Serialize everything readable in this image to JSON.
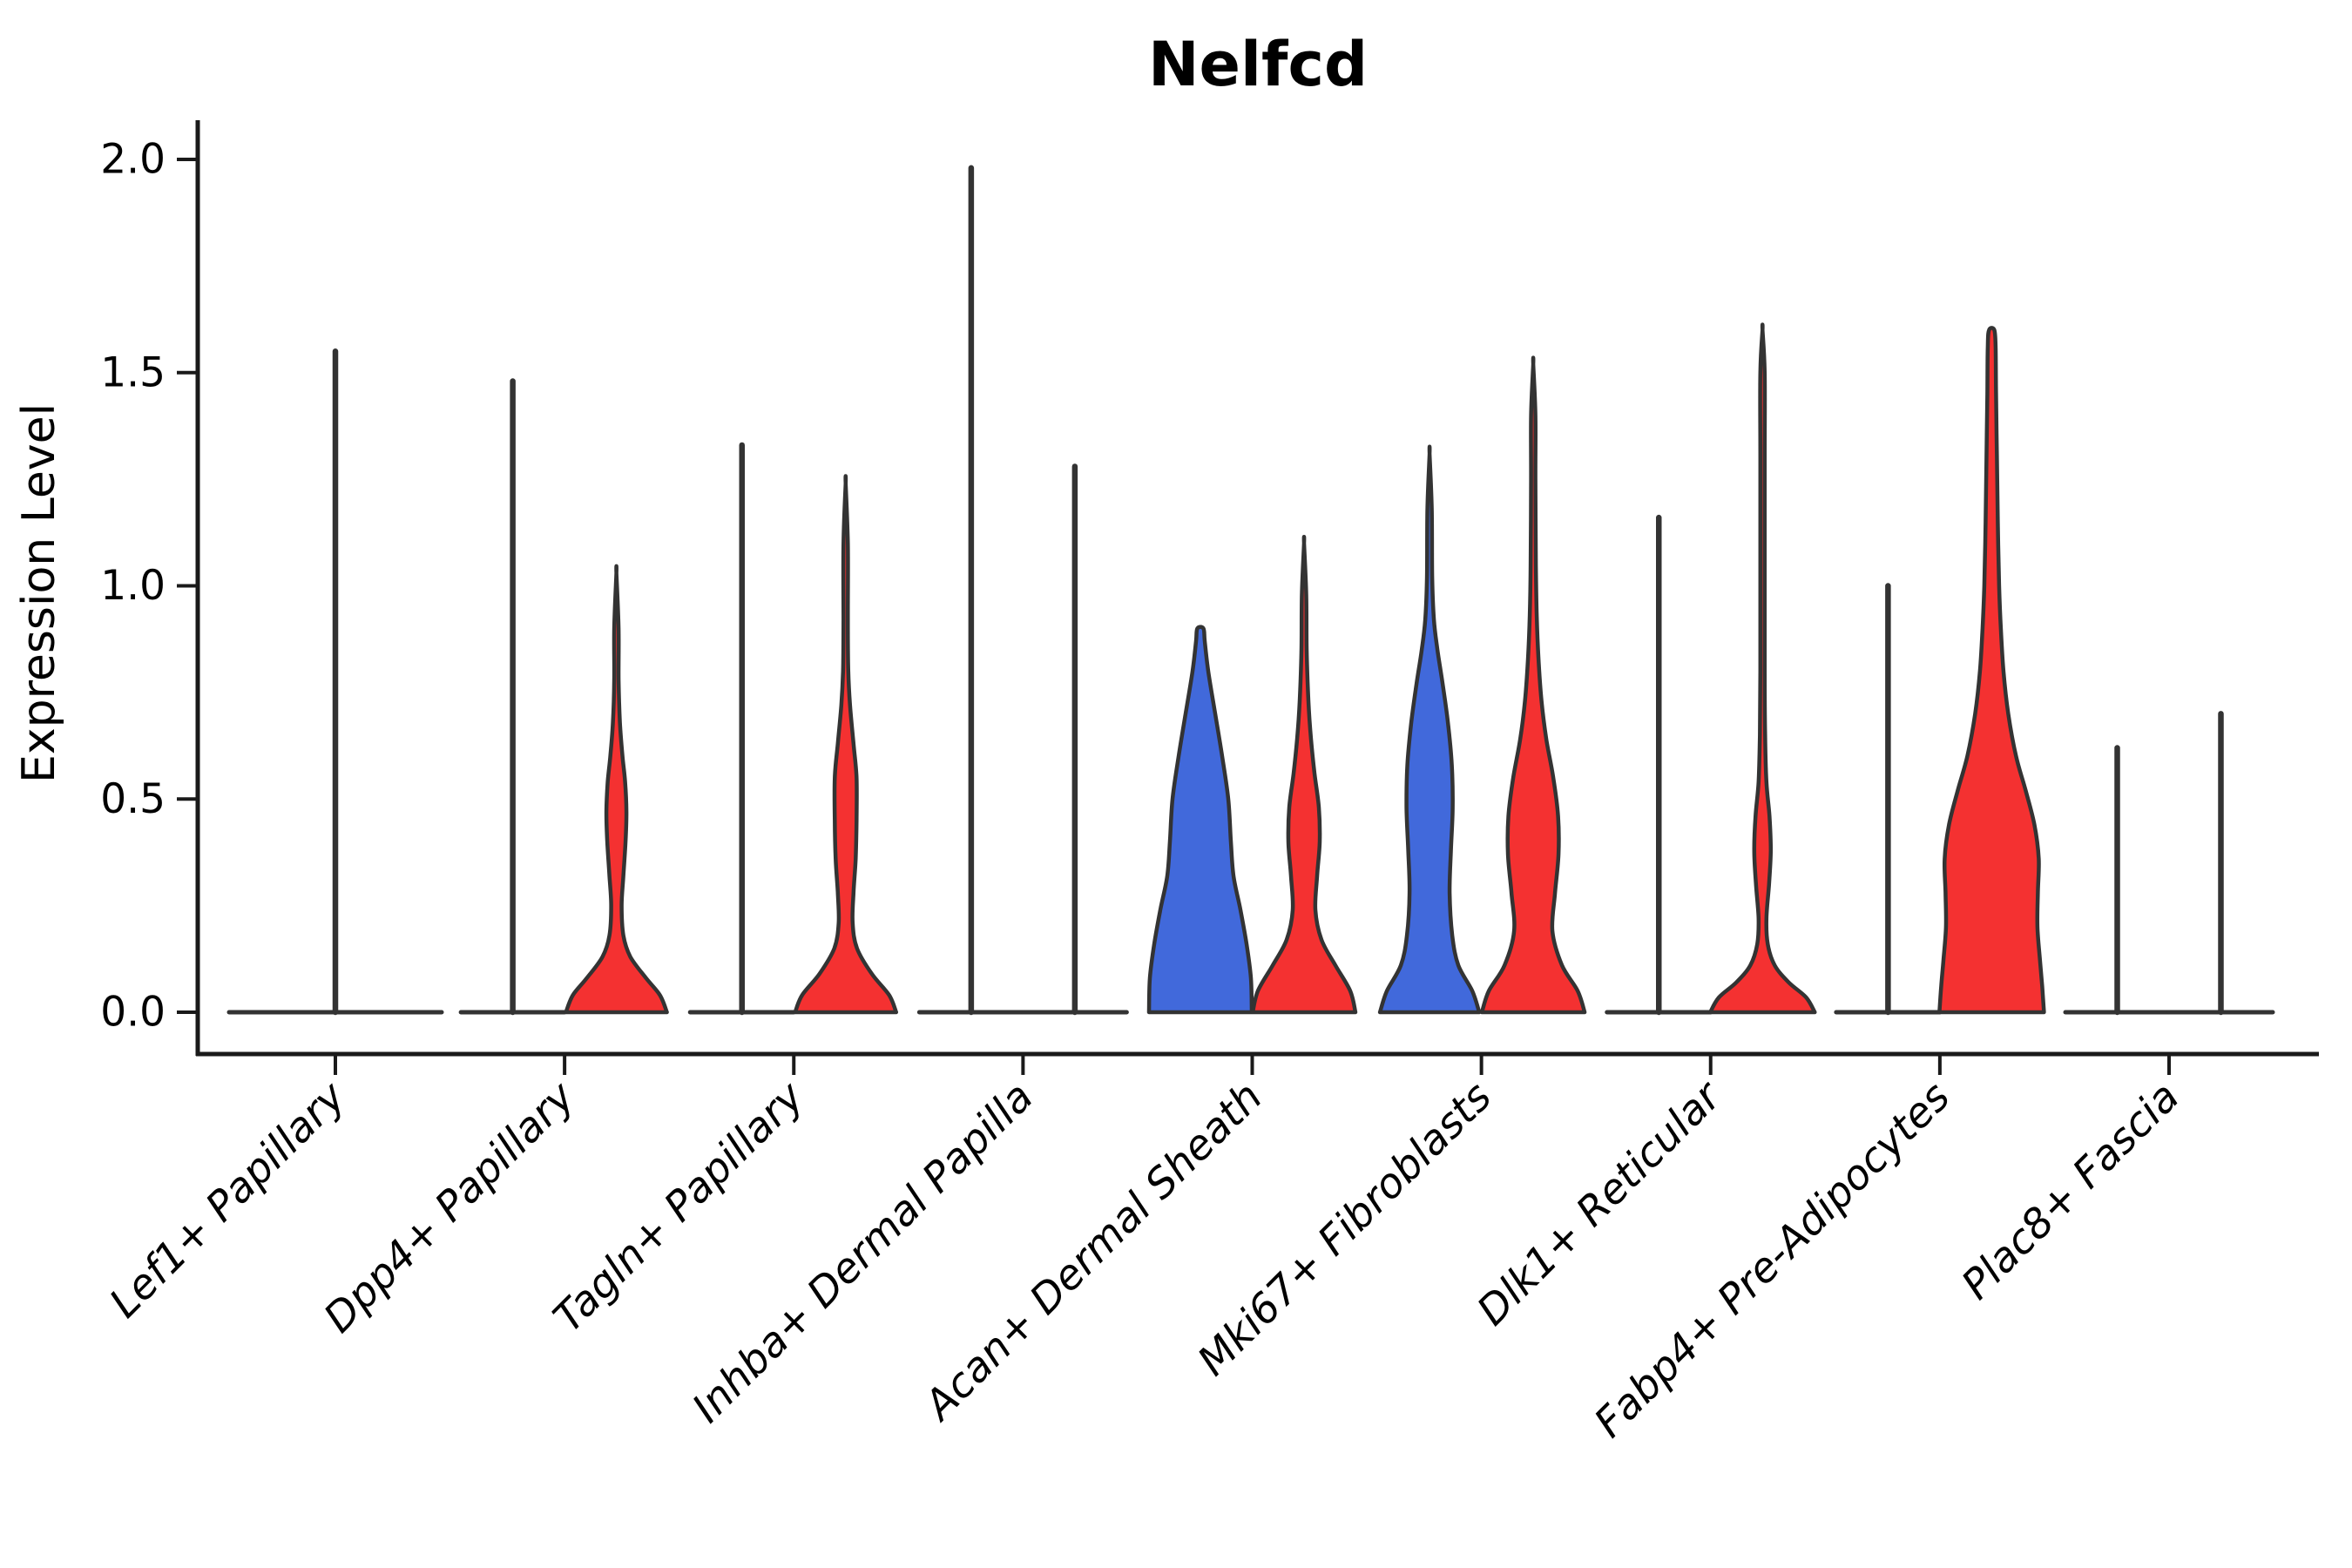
{
  "title": "Nelfcd",
  "ylabel": "Expression Level",
  "colors": {
    "red": "#F43131",
    "blue": "#4169DB",
    "outline": "#333333",
    "axis": "#1a1a1a",
    "background": "#ffffff"
  },
  "chart_data": {
    "type": "violin",
    "title": "Nelfcd",
    "ylabel": "Expression Level",
    "xlabel": "",
    "ylim": [
      0,
      2.0
    ],
    "y_ticks": [
      "0.0",
      "0.5",
      "1.0",
      "1.5",
      "2.0"
    ],
    "y_tick_values": [
      0.0,
      0.5,
      1.0,
      1.5,
      2.0
    ],
    "grid": false,
    "legend": "none",
    "x_label_style": "italic, rotated 45deg",
    "categories": [
      "Lef1+ Papillary",
      "Dpp4+ Papillary",
      "Tagln+ Papillary",
      "Inhba+ Dermal Papilla",
      "Acan+ Dermal Sheath",
      "Mki67+ Fibroblasts",
      "Dlk1+ Reticular",
      "Fabp4+ Pre-Adipocytes",
      "Plac8+ Fascia"
    ],
    "groups": [
      {
        "label": "Lef1+ Papillary",
        "violins": [
          {
            "slot": "full",
            "kind": "spike",
            "fill": "none",
            "max": 1.55
          }
        ]
      },
      {
        "label": "Dpp4+ Papillary",
        "violins": [
          {
            "slot": "A",
            "kind": "spike",
            "fill": "none",
            "max": 1.48
          },
          {
            "slot": "B",
            "kind": "violin",
            "fill": "red",
            "max": 1.03,
            "bulge_center": 0.47,
            "profile": [
              [
                0,
                58
              ],
              [
                0.04,
                50
              ],
              [
                0.08,
                34
              ],
              [
                0.13,
                16
              ],
              [
                0.18,
                8
              ],
              [
                0.25,
                6
              ],
              [
                0.32,
                8
              ],
              [
                0.4,
                10.5
              ],
              [
                0.47,
                11.5
              ],
              [
                0.54,
                10
              ],
              [
                0.6,
                7
              ],
              [
                0.68,
                4
              ],
              [
                0.78,
                2.5
              ],
              [
                0.9,
                2.5
              ],
              [
                1.03,
                0
              ]
            ]
          }
        ]
      },
      {
        "label": "Tagln+ Papillary",
        "violins": [
          {
            "slot": "A",
            "kind": "spike",
            "fill": "none",
            "max": 1.33
          },
          {
            "slot": "B",
            "kind": "violin",
            "fill": "red",
            "max": 1.24,
            "bulge_center": 0.52,
            "profile": [
              [
                0,
                58
              ],
              [
                0.04,
                50
              ],
              [
                0.09,
                30
              ],
              [
                0.15,
                13
              ],
              [
                0.21,
                8
              ],
              [
                0.28,
                9
              ],
              [
                0.36,
                11.5
              ],
              [
                0.45,
                12.5
              ],
              [
                0.55,
                12.5
              ],
              [
                0.63,
                9
              ],
              [
                0.72,
                5
              ],
              [
                0.8,
                3
              ],
              [
                0.92,
                2.5
              ],
              [
                1.1,
                2.5
              ],
              [
                1.24,
                0
              ]
            ]
          }
        ]
      },
      {
        "label": "Inhba+ Dermal Papilla",
        "violins": [
          {
            "slot": "A",
            "kind": "spike",
            "fill": "none",
            "max": 1.98
          },
          {
            "slot": "B",
            "kind": "spike",
            "fill": "none",
            "max": 1.28
          }
        ]
      },
      {
        "label": "Acan+ Dermal Sheath",
        "violins": [
          {
            "slot": "A",
            "kind": "violin",
            "fill": "blue",
            "max": 0.9,
            "blunt": true,
            "profile": [
              [
                0,
                59
              ],
              [
                0.08,
                58
              ],
              [
                0.16,
                53
              ],
              [
                0.24,
                46
              ],
              [
                0.32,
                38
              ],
              [
                0.4,
                35
              ],
              [
                0.5,
                32
              ],
              [
                0.6,
                25
              ],
              [
                0.7,
                17
              ],
              [
                0.8,
                9
              ],
              [
                0.87,
                5
              ],
              [
                0.9,
                3.5
              ]
            ]
          },
          {
            "slot": "B",
            "kind": "violin",
            "fill": "red",
            "max": 1.1,
            "bulge_center": 0.42,
            "profile": [
              [
                0,
                59
              ],
              [
                0.05,
                53
              ],
              [
                0.11,
                36
              ],
              [
                0.17,
                20
              ],
              [
                0.24,
                13
              ],
              [
                0.32,
                15
              ],
              [
                0.4,
                18
              ],
              [
                0.48,
                17
              ],
              [
                0.56,
                12
              ],
              [
                0.64,
                8
              ],
              [
                0.73,
                5
              ],
              [
                0.85,
                3
              ],
              [
                0.98,
                2.5
              ],
              [
                1.1,
                0
              ]
            ]
          }
        ]
      },
      {
        "label": "Mki67+ Fibroblasts",
        "violins": [
          {
            "slot": "A",
            "kind": "violin",
            "fill": "blue",
            "max": 1.31,
            "bulge_center": 0.5,
            "profile": [
              [
                0,
                57
              ],
              [
                0.05,
                49
              ],
              [
                0.11,
                33
              ],
              [
                0.18,
                26
              ],
              [
                0.28,
                23
              ],
              [
                0.38,
                24.5
              ],
              [
                0.48,
                26.5
              ],
              [
                0.58,
                25.5
              ],
              [
                0.68,
                21
              ],
              [
                0.77,
                15
              ],
              [
                0.85,
                9
              ],
              [
                0.92,
                5
              ],
              [
                1.02,
                3
              ],
              [
                1.18,
                2.5
              ],
              [
                1.31,
                0
              ]
            ]
          },
          {
            "slot": "B",
            "kind": "violin",
            "fill": "red",
            "max": 1.52,
            "bulge_center": 0.42,
            "profile": [
              [
                0,
                59
              ],
              [
                0.05,
                51
              ],
              [
                0.11,
                33
              ],
              [
                0.19,
                22
              ],
              [
                0.28,
                25
              ],
              [
                0.37,
                29
              ],
              [
                0.46,
                28.5
              ],
              [
                0.55,
                23
              ],
              [
                0.64,
                15
              ],
              [
                0.73,
                9.5
              ],
              [
                0.83,
                6
              ],
              [
                0.93,
                4
              ],
              [
                1.05,
                3
              ],
              [
                1.25,
                2.5
              ],
              [
                1.4,
                2.5
              ],
              [
                1.52,
                0
              ]
            ]
          }
        ]
      },
      {
        "label": "Dlk1+ Reticular",
        "violins": [
          {
            "slot": "A",
            "kind": "spike",
            "fill": "none",
            "max": 1.16
          },
          {
            "slot": "B",
            "kind": "violin",
            "fill": "red",
            "max": 1.6,
            "bulge_center": 0.4,
            "profile": [
              [
                0,
                60
              ],
              [
                0.035,
                50
              ],
              [
                0.07,
                30
              ],
              [
                0.11,
                14
              ],
              [
                0.16,
                6
              ],
              [
                0.22,
                4.5
              ],
              [
                0.3,
                7.5
              ],
              [
                0.38,
                9.5
              ],
              [
                0.46,
                8
              ],
              [
                0.54,
                4.5
              ],
              [
                0.65,
                3
              ],
              [
                0.8,
                2.5
              ],
              [
                1.0,
                2.5
              ],
              [
                1.3,
                2.5
              ],
              [
                1.5,
                2.5
              ],
              [
                1.6,
                0
              ]
            ]
          }
        ]
      },
      {
        "label": "Fabp4+ Pre-Adipocytes",
        "violins": [
          {
            "slot": "A",
            "kind": "spike",
            "fill": "none",
            "max": 1.0
          },
          {
            "slot": "B",
            "kind": "violin",
            "fill": "red",
            "max": 1.6,
            "blunt": true,
            "profile": [
              [
                0,
                60
              ],
              [
                0.06,
                58
              ],
              [
                0.12,
                55.5
              ],
              [
                0.2,
                52.5
              ],
              [
                0.28,
                53
              ],
              [
                0.36,
                54
              ],
              [
                0.44,
                49
              ],
              [
                0.52,
                39
              ],
              [
                0.6,
                28
              ],
              [
                0.7,
                19
              ],
              [
                0.8,
                13.5
              ],
              [
                0.9,
                10.5
              ],
              [
                1.0,
                8.5
              ],
              [
                1.15,
                7
              ],
              [
                1.3,
                6
              ],
              [
                1.45,
                5
              ],
              [
                1.56,
                4.5
              ],
              [
                1.6,
                3
              ]
            ]
          }
        ]
      },
      {
        "label": "Plac8+ Fascia",
        "violins": [
          {
            "slot": "A",
            "kind": "spike",
            "fill": "none",
            "max": 0.62
          },
          {
            "slot": "B",
            "kind": "spike",
            "fill": "none",
            "max": 0.7
          }
        ]
      }
    ]
  }
}
